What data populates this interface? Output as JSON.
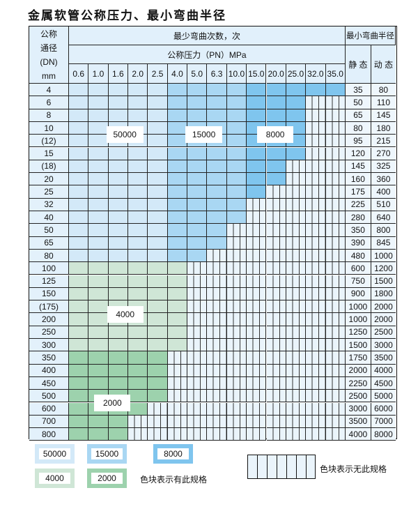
{
  "title": "金属软管公称压力、最小弯曲半径",
  "header": {
    "dn_lines": [
      "公称",
      "通径",
      "(DN)",
      "mm"
    ],
    "bend_count": "最少弯曲次数，次",
    "pressure_label": "公称压力（PN）MPa",
    "radius": "最小弯曲半径",
    "static": "静 态",
    "dynamic": "动 态"
  },
  "pressures": [
    "0.6",
    "1.0",
    "1.6",
    "2.0",
    "2.5",
    "4.0",
    "5.0",
    "6.3",
    "10.0",
    "15.0",
    "20.0",
    "25.0",
    "32.0",
    "35.0"
  ],
  "colors": {
    "c50000": "#d3e9f8",
    "c15000": "#a9d7f3",
    "c8000": "#7fc5ee",
    "c4000": "#cfe6d6",
    "c2000": "#9dd2ad",
    "none": "#eaf4fb"
  },
  "rows": [
    {
      "dn": "4",
      "static": "35",
      "dynamic": "80",
      "available": 14
    },
    {
      "dn": "6",
      "static": "50",
      "dynamic": "110",
      "available": 12
    },
    {
      "dn": "8",
      "static": "65",
      "dynamic": "145",
      "available": 12
    },
    {
      "dn": "10",
      "static": "80",
      "dynamic": "180",
      "available": 12
    },
    {
      "dn": "(12)",
      "static": "95",
      "dynamic": "215",
      "available": 12
    },
    {
      "dn": "15",
      "static": "120",
      "dynamic": "270",
      "available": 12
    },
    {
      "dn": "(18)",
      "static": "145",
      "dynamic": "325",
      "available": 11
    },
    {
      "dn": "20",
      "static": "160",
      "dynamic": "360",
      "available": 11
    },
    {
      "dn": "25",
      "static": "175",
      "dynamic": "400",
      "available": 10
    },
    {
      "dn": "32",
      "static": "225",
      "dynamic": "510",
      "available": 9
    },
    {
      "dn": "40",
      "static": "280",
      "dynamic": "640",
      "available": 9
    },
    {
      "dn": "50",
      "static": "350",
      "dynamic": "800",
      "available": 8
    },
    {
      "dn": "65",
      "static": "390",
      "dynamic": "845",
      "available": 8
    },
    {
      "dn": "80",
      "static": "480",
      "dynamic": "1000",
      "available": 7
    },
    {
      "dn": "100",
      "static": "600",
      "dynamic": "1200",
      "available": 6
    },
    {
      "dn": "125",
      "static": "750",
      "dynamic": "1500",
      "available": 6
    },
    {
      "dn": "150",
      "static": "900",
      "dynamic": "1800",
      "available": 6
    },
    {
      "dn": "(175)",
      "static": "1000",
      "dynamic": "2000",
      "available": 6
    },
    {
      "dn": "200",
      "static": "1000",
      "dynamic": "2000",
      "available": 6
    },
    {
      "dn": "250",
      "static": "1250",
      "dynamic": "2500",
      "available": 6
    },
    {
      "dn": "300",
      "static": "1500",
      "dynamic": "3000",
      "available": 6
    },
    {
      "dn": "350",
      "static": "1750",
      "dynamic": "3500",
      "available": 5
    },
    {
      "dn": "400",
      "static": "2000",
      "dynamic": "4000",
      "available": 5
    },
    {
      "dn": "450",
      "static": "2250",
      "dynamic": "4500",
      "available": 5
    },
    {
      "dn": "500",
      "static": "2500",
      "dynamic": "5000",
      "available": 5
    },
    {
      "dn": "600",
      "static": "3000",
      "dynamic": "6000",
      "available": 4
    },
    {
      "dn": "700",
      "static": "3500",
      "dynamic": "7000",
      "available": 3
    },
    {
      "dn": "800",
      "static": "4000",
      "dynamic": "8000",
      "available": 3
    }
  ],
  "region_labels": {
    "l50000": "50000",
    "l15000": "15000",
    "l8000": "8000",
    "l4000": "4000",
    "l2000": "2000"
  },
  "legend": {
    "items": [
      "50000",
      "15000",
      "8000",
      "4000",
      "2000"
    ],
    "has_spec": "色块表示有此规格",
    "no_spec": "色块表示无此规格"
  }
}
